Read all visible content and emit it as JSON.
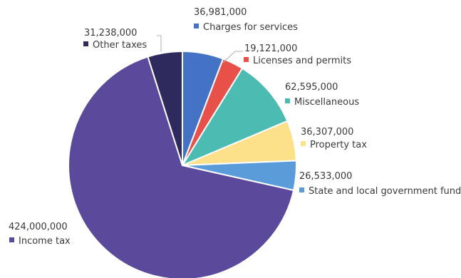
{
  "chart_data": {
    "type": "pie",
    "title": "",
    "slices": [
      {
        "label": "Charges for services",
        "value": 36981000,
        "value_label": "36,981,000",
        "color": "#4472c4"
      },
      {
        "label": "Licenses and permits",
        "value": 19121000,
        "value_label": "19,121,000",
        "color": "#e8504a"
      },
      {
        "label": "Miscellaneous",
        "value": 62595000,
        "value_label": "62,595,000",
        "color": "#4cbcb2"
      },
      {
        "label": "Property tax",
        "value": 36307000,
        "value_label": "36,307,000",
        "color": "#fde08a"
      },
      {
        "label": "State and local government funds",
        "value": 26533000,
        "value_label": "26,533,000",
        "color": "#5a9bd9"
      },
      {
        "label": "Income tax",
        "value": 424000000,
        "value_label": "424,000,000",
        "color": "#5b4a9b"
      },
      {
        "label": "Other taxes",
        "value": 31238000,
        "value_label": "31,238,000",
        "color": "#2f2a5e"
      }
    ],
    "legend": "data-labels"
  }
}
